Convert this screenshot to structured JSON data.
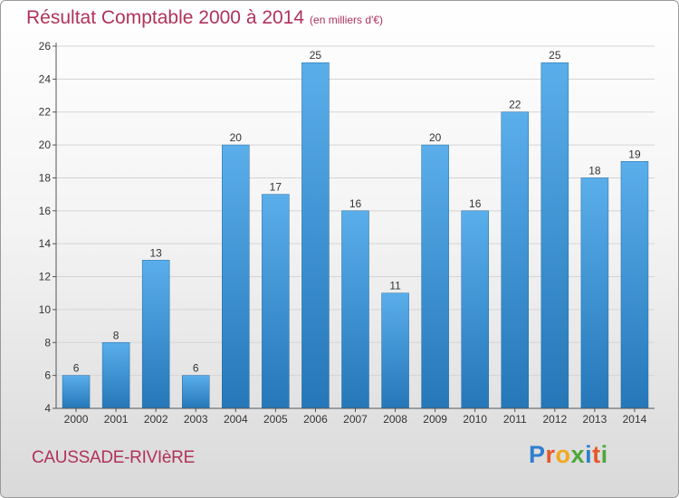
{
  "header": {
    "title": "Résultat Comptable 2000 à 2014",
    "subtitle": "(en milliers d'€)"
  },
  "footer": {
    "place": "CAUSSADE-RIVIèRE",
    "logo": "Proxiti"
  },
  "colors": {
    "accent": "#b0325a",
    "bar_top": "#5aaeea",
    "bar_bottom": "#2577b8"
  },
  "chart_data": {
    "type": "bar",
    "title": "Résultat Comptable 2000 à 2014",
    "unit": "(en milliers d'€)",
    "xlabel": "",
    "ylabel": "",
    "categories": [
      "2000",
      "2001",
      "2002",
      "2003",
      "2004",
      "2005",
      "2006",
      "2007",
      "2008",
      "2009",
      "2010",
      "2011",
      "2012",
      "2013",
      "2014"
    ],
    "values": [
      6,
      8,
      13,
      6,
      20,
      17,
      25,
      16,
      11,
      20,
      16,
      22,
      25,
      18,
      19
    ],
    "ylim": [
      4,
      26
    ],
    "yticks": [
      4,
      6,
      8,
      10,
      12,
      14,
      16,
      18,
      20,
      22,
      24,
      26
    ],
    "grid": true,
    "data_labels": true
  }
}
